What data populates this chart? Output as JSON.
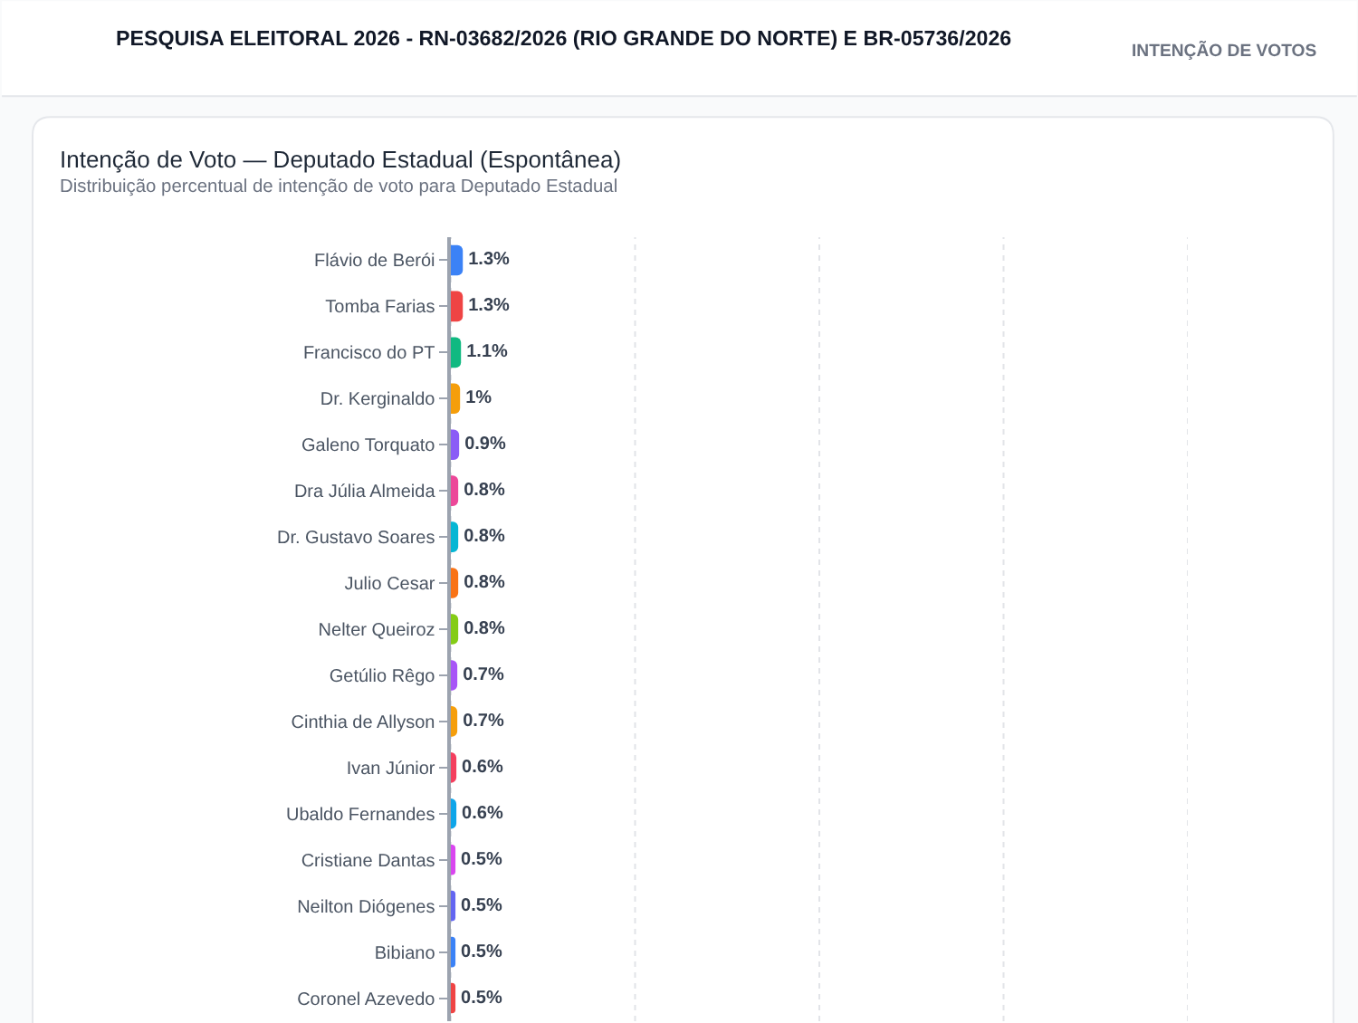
{
  "chart_data": {
    "type": "bar",
    "orientation": "horizontal",
    "title": "Intenção de Voto — Deputado Estadual (Espontânea)",
    "subtitle": "Distribuição percentual de intenção de voto para Deputado Estadual",
    "annotations": [
      "PESQUISA ELEITORAL 2026 - RN-03682/2026 (RIO GRANDE DO NORTE) E BR-05736/2026",
      "INTENÇÃO DE VOTOS"
    ],
    "categories": [
      "Flávio de Berói",
      "Tomba Farias",
      "Francisco do PT",
      "Dr. Kerginaldo",
      "Galeno Torquato",
      "Dra Júlia Almeida",
      "Dr. Gustavo Soares",
      "Julio Cesar",
      "Nelter Queiroz",
      "Getúlio Rêgo",
      "Cinthia de Allyson",
      "Ivan Júnior",
      "Ubaldo Fernandes",
      "Cristiane Dantas",
      "Neilton Diógenes",
      "Bibiano",
      "Coronel Azevedo"
    ],
    "values": [
      1.3,
      1.3,
      1.1,
      1,
      0.9,
      0.8,
      0.8,
      0.8,
      0.8,
      0.7,
      0.7,
      0.6,
      0.6,
      0.5,
      0.5,
      0.5,
      0.5
    ],
    "value_labels": [
      "1.3%",
      "1.3%",
      "1.1%",
      "1%",
      "0.9%",
      "0.8%",
      "0.8%",
      "0.8%",
      "0.8%",
      "0.7%",
      "0.7%",
      "0.6%",
      "0.6%",
      "0.5%",
      "0.5%",
      "0.5%",
      "0.5%"
    ],
    "colors": [
      "#3b82f6",
      "#ef4444",
      "#10b981",
      "#f59e0b",
      "#8b5cf6",
      "#ec4899",
      "#06b6d4",
      "#f97316",
      "#84cc16",
      "#a855f7",
      "#f59e0b",
      "#f43f5e",
      "#0ea5e9",
      "#d946ef",
      "#6366f1",
      "#3b82f6",
      "#ef4444"
    ],
    "xlim": [
      0,
      80
    ],
    "xticks": [
      {
        "value": 0,
        "label": null
      },
      {
        "value": 20,
        "label": null
      },
      {
        "value": 40,
        "label": null
      },
      {
        "value": 60,
        "label": null
      },
      {
        "value": 80,
        "label": null
      }
    ],
    "grid": "x",
    "tick_labels": "y"
  }
}
